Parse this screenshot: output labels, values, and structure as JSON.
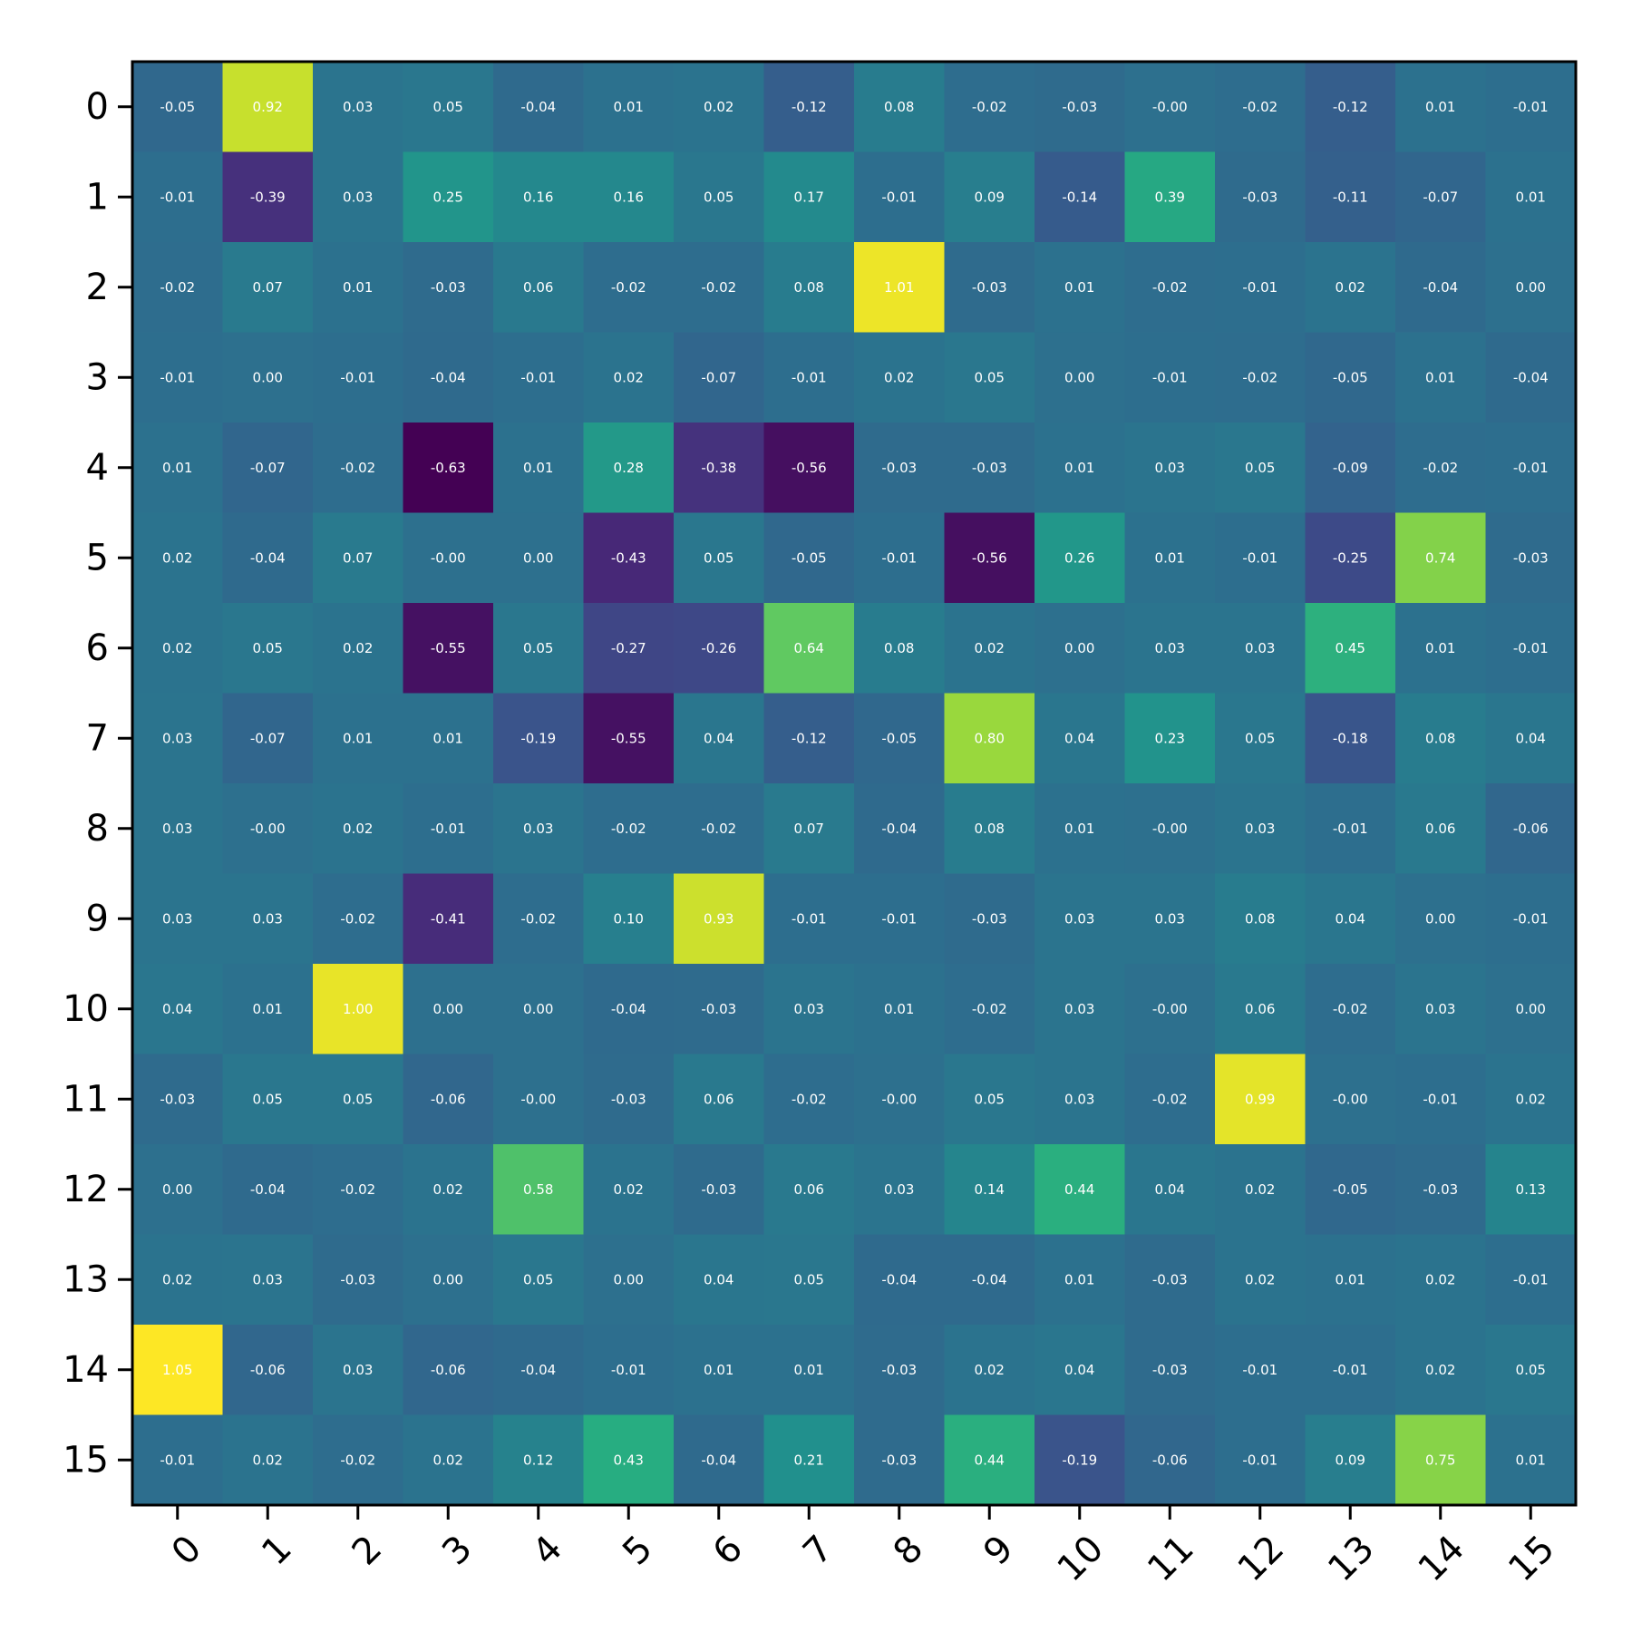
{
  "chart_data": {
    "type": "heatmap",
    "title": "",
    "xlabel": "",
    "ylabel": "",
    "colormap": "viridis",
    "vmin": -0.63,
    "vmax": 1.05,
    "x_ticks": [
      "0",
      "1",
      "2",
      "3",
      "4",
      "5",
      "6",
      "7",
      "8",
      "9",
      "10",
      "11",
      "12",
      "13",
      "14",
      "15"
    ],
    "y_ticks": [
      "0",
      "1",
      "2",
      "3",
      "4",
      "5",
      "6",
      "7",
      "8",
      "9",
      "10",
      "11",
      "12",
      "13",
      "14",
      "15"
    ],
    "labels": [
      [
        "-0.05",
        "0.92",
        "0.03",
        "0.05",
        "-0.04",
        "0.01",
        "0.02",
        "-0.12",
        "0.08",
        "-0.02",
        "-0.03",
        "-0.00",
        "-0.02",
        "-0.12",
        "0.01",
        "-0.01"
      ],
      [
        "-0.01",
        "-0.39",
        "0.03",
        "0.25",
        "0.16",
        "0.16",
        "0.05",
        "0.17",
        "-0.01",
        "0.09",
        "-0.14",
        "0.39",
        "-0.03",
        "-0.11",
        "-0.07",
        "0.01"
      ],
      [
        "-0.02",
        "0.07",
        "0.01",
        "-0.03",
        "0.06",
        "-0.02",
        "-0.02",
        "0.08",
        "1.01",
        "-0.03",
        "0.01",
        "-0.02",
        "-0.01",
        "0.02",
        "-0.04",
        "0.00"
      ],
      [
        "-0.01",
        "0.00",
        "-0.01",
        "-0.04",
        "-0.01",
        "0.02",
        "-0.07",
        "-0.01",
        "0.02",
        "0.05",
        "0.00",
        "-0.01",
        "-0.02",
        "-0.05",
        "0.01",
        "-0.04"
      ],
      [
        "0.01",
        "-0.07",
        "-0.02",
        "-0.63",
        "0.01",
        "0.28",
        "-0.38",
        "-0.56",
        "-0.03",
        "-0.03",
        "0.01",
        "0.03",
        "0.05",
        "-0.09",
        "-0.02",
        "-0.01"
      ],
      [
        "0.02",
        "-0.04",
        "0.07",
        "-0.00",
        "0.00",
        "-0.43",
        "0.05",
        "-0.05",
        "-0.01",
        "-0.56",
        "0.26",
        "0.01",
        "-0.01",
        "-0.25",
        "0.74",
        "-0.03"
      ],
      [
        "0.02",
        "0.05",
        "0.02",
        "-0.55",
        "0.05",
        "-0.27",
        "-0.26",
        "0.64",
        "0.08",
        "0.02",
        "0.00",
        "0.03",
        "0.03",
        "0.45",
        "0.01",
        "-0.01"
      ],
      [
        "0.03",
        "-0.07",
        "0.01",
        "0.01",
        "-0.19",
        "-0.55",
        "0.04",
        "-0.12",
        "-0.05",
        "0.80",
        "0.04",
        "0.23",
        "0.05",
        "-0.18",
        "0.08",
        "0.04"
      ],
      [
        "0.03",
        "-0.00",
        "0.02",
        "-0.01",
        "0.03",
        "-0.02",
        "-0.02",
        "0.07",
        "-0.04",
        "0.08",
        "0.01",
        "-0.00",
        "0.03",
        "-0.01",
        "0.06",
        "-0.06"
      ],
      [
        "0.03",
        "0.03",
        "-0.02",
        "-0.41",
        "-0.02",
        "0.10",
        "0.93",
        "-0.01",
        "-0.01",
        "-0.03",
        "0.03",
        "0.03",
        "0.08",
        "0.04",
        "0.00",
        "-0.01"
      ],
      [
        "0.04",
        "0.01",
        "1.00",
        "0.00",
        "0.00",
        "-0.04",
        "-0.03",
        "0.03",
        "0.01",
        "-0.02",
        "0.03",
        "-0.00",
        "0.06",
        "-0.02",
        "0.03",
        "0.00"
      ],
      [
        "-0.03",
        "0.05",
        "0.05",
        "-0.06",
        "-0.00",
        "-0.03",
        "0.06",
        "-0.02",
        "-0.00",
        "0.05",
        "0.03",
        "-0.02",
        "0.99",
        "-0.00",
        "-0.01",
        "0.02"
      ],
      [
        "0.00",
        "-0.04",
        "-0.02",
        "0.02",
        "0.58",
        "0.02",
        "-0.03",
        "0.06",
        "0.03",
        "0.14",
        "0.44",
        "0.04",
        "0.02",
        "-0.05",
        "-0.03",
        "0.13"
      ],
      [
        "0.02",
        "0.03",
        "-0.03",
        "0.00",
        "0.05",
        "0.00",
        "0.04",
        "0.05",
        "-0.04",
        "-0.04",
        "0.01",
        "-0.03",
        "0.02",
        "0.01",
        "0.02",
        "-0.01"
      ],
      [
        "1.05",
        "-0.06",
        "0.03",
        "-0.06",
        "-0.04",
        "-0.01",
        "0.01",
        "0.01",
        "-0.03",
        "0.02",
        "0.04",
        "-0.03",
        "-0.01",
        "-0.01",
        "0.02",
        "0.05"
      ],
      [
        "-0.01",
        "0.02",
        "-0.02",
        "0.02",
        "0.12",
        "0.43",
        "-0.04",
        "0.21",
        "-0.03",
        "0.44",
        "-0.19",
        "-0.06",
        "-0.01",
        "0.09",
        "0.75",
        "0.01"
      ]
    ],
    "grid": false,
    "legend": "none"
  }
}
